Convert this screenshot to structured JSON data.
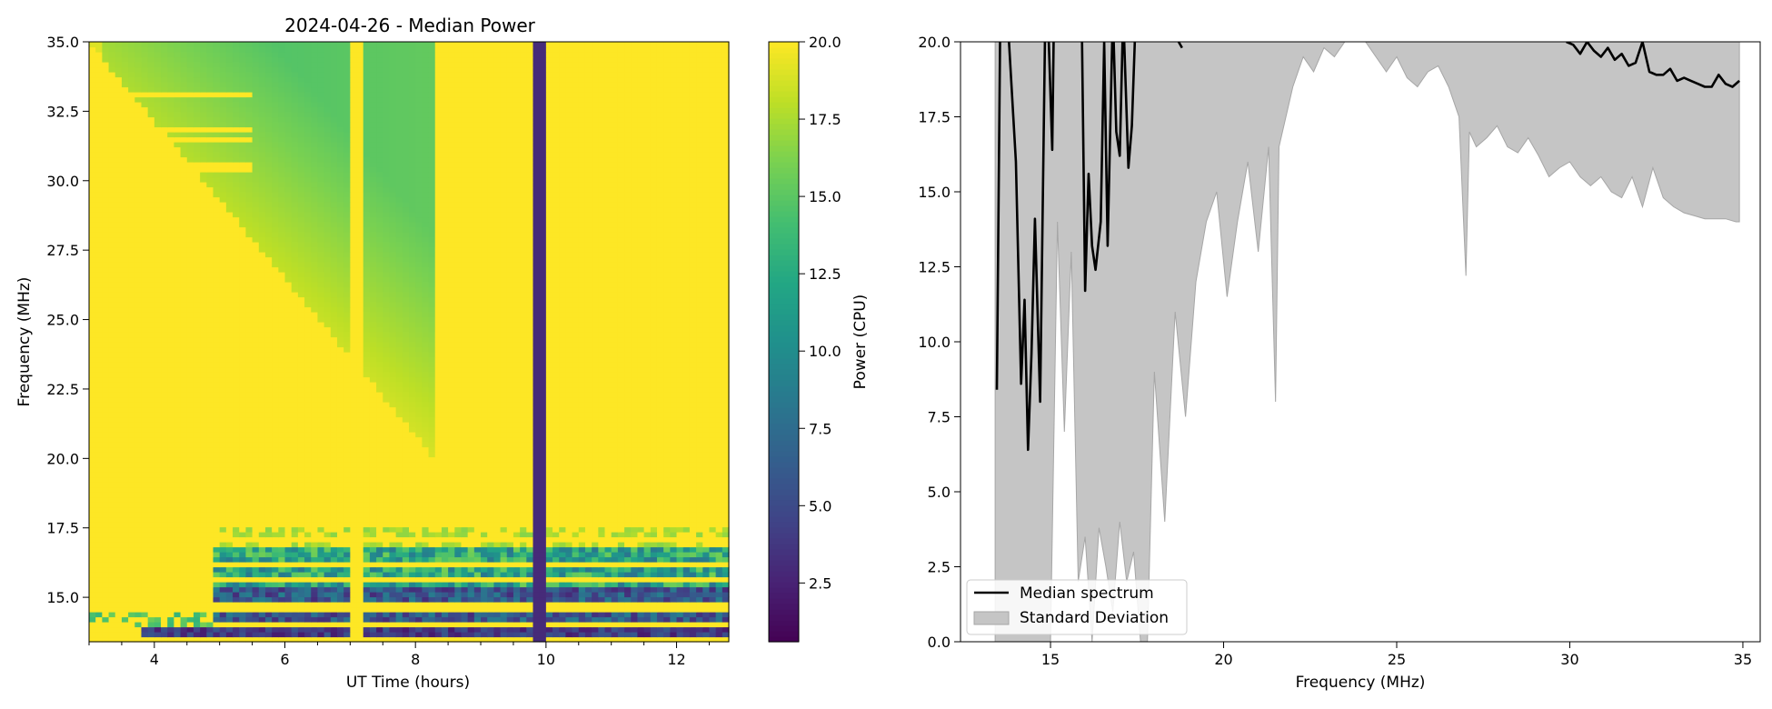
{
  "chart_data": [
    {
      "type": "heatmap",
      "title": "2024-04-26 - Median Power",
      "xlabel": "UT Time (hours)",
      "ylabel": "Frequency (MHz)",
      "xlim": [
        3.0,
        12.8
      ],
      "ylim": [
        13.4,
        35.0
      ],
      "xticks": [
        "4",
        "6",
        "8",
        "10",
        "12"
      ],
      "yticks": [
        "15.0",
        "17.5",
        "20.0",
        "22.5",
        "25.0",
        "27.5",
        "30.0",
        "32.5",
        "35.0"
      ],
      "colormap": "viridis",
      "colorbar": {
        "label": "Power (CPU)",
        "range": [
          0.6,
          20.0
        ],
        "ticks": [
          "2.5",
          "5.0",
          "7.5",
          "10.0",
          "12.5",
          "15.0",
          "17.5",
          "20.0"
        ]
      },
      "features": [
        {
          "kind": "dropout column",
          "time": 10.0,
          "value": 3.0
        },
        {
          "kind": "low-power band",
          "freq": [
            13.8,
            18.2
          ],
          "value_range": [
            2,
            14
          ]
        },
        {
          "kind": "green region",
          "freq": [
            20.0,
            35.0
          ],
          "time": [
            3.0,
            8.3
          ],
          "value_range": [
            13.5,
            18
          ]
        }
      ]
    },
    {
      "type": "line",
      "xlabel": "Frequency (MHz)",
      "ylabel": "",
      "xlim": [
        12.4,
        35.5
      ],
      "ylim": [
        0.0,
        20.0
      ],
      "xticks": [
        "15",
        "20",
        "25",
        "30",
        "35"
      ],
      "yticks": [
        "0.0",
        "2.5",
        "5.0",
        "7.5",
        "10.0",
        "12.5",
        "15.0",
        "17.5",
        "20.0"
      ],
      "legend": {
        "placement": "lower-left",
        "entries": [
          "Median spectrum",
          "Standard Deviation"
        ]
      },
      "series": [
        {
          "name": "Median spectrum",
          "x": [
            13.45,
            13.55,
            13.75,
            14.0,
            14.15,
            14.25,
            14.35,
            14.45,
            14.55,
            14.7,
            14.85,
            14.95,
            15.05,
            15.1,
            15.9,
            16.0,
            16.1,
            16.2,
            16.3,
            16.45,
            16.55,
            16.65,
            16.8,
            16.9,
            17.0,
            17.1,
            17.25,
            17.35,
            17.45,
            18.7,
            18.8,
            29.9,
            30.1,
            30.3,
            30.5,
            30.7,
            30.9,
            31.1,
            31.3,
            31.5,
            31.7,
            31.9,
            32.1,
            32.3,
            32.5,
            32.7,
            32.9,
            33.1,
            33.3,
            33.5,
            33.7,
            33.9,
            34.1,
            34.3,
            34.5,
            34.7,
            34.9
          ],
          "y": [
            8.4,
            21,
            21,
            16.0,
            8.6,
            11.4,
            6.4,
            9.6,
            14.1,
            8.0,
            21,
            20.0,
            16.4,
            21,
            21,
            11.7,
            15.6,
            13.2,
            12.4,
            14.0,
            20.0,
            13.2,
            21,
            17.0,
            16.2,
            21,
            15.8,
            17.2,
            20.5,
            20.0,
            19.8,
            20.0,
            19.9,
            19.6,
            20.0,
            19.7,
            19.5,
            19.8,
            19.4,
            19.6,
            19.2,
            19.3,
            20.0,
            19.0,
            18.9,
            18.9,
            19.1,
            18.7,
            18.8,
            18.7,
            18.6,
            18.5,
            18.5,
            18.9,
            18.6,
            18.5,
            18.7
          ]
        },
        {
          "name": "Standard Deviation",
          "kind": "band",
          "x": [
            13.4,
            13.5,
            13.7,
            13.9,
            14.1,
            14.3,
            14.5,
            14.7,
            14.9,
            15.0,
            15.2,
            15.4,
            15.6,
            15.8,
            16.0,
            16.2,
            16.4,
            16.6,
            16.8,
            17.0,
            17.2,
            17.4,
            17.6,
            17.8,
            18.0,
            18.3,
            18.6,
            18.9,
            19.2,
            19.5,
            19.8,
            20.1,
            20.4,
            20.7,
            21.0,
            21.3,
            21.5,
            21.6,
            21.8,
            22.0,
            22.3,
            22.6,
            22.9,
            23.2,
            23.5,
            23.8,
            24.1,
            24.4,
            24.7,
            25.0,
            25.3,
            25.6,
            25.9,
            26.2,
            26.5,
            26.8,
            27.0,
            27.1,
            27.3,
            27.6,
            27.9,
            28.2,
            28.5,
            28.8,
            29.1,
            29.4,
            29.7,
            30.0,
            30.3,
            30.6,
            30.9,
            31.2,
            31.5,
            31.8,
            32.1,
            32.4,
            32.7,
            33.0,
            33.3,
            33.6,
            33.9,
            34.2,
            34.5,
            34.8,
            34.9
          ],
          "lower": [
            0.0,
            0.0,
            0.0,
            0.0,
            0.0,
            0.0,
            0.0,
            0.0,
            0.0,
            0.0,
            14.0,
            7.0,
            13.0,
            2.0,
            3.5,
            0.0,
            3.8,
            2.5,
            1.0,
            4.0,
            2.0,
            3.0,
            0.0,
            0.0,
            9.0,
            4.0,
            11.0,
            7.5,
            12.0,
            14.0,
            15.0,
            11.5,
            14.0,
            16.0,
            13.0,
            16.5,
            8.0,
            16.5,
            17.5,
            18.5,
            19.5,
            19.0,
            19.8,
            19.5,
            20.0,
            20.0,
            20.0,
            19.5,
            19.0,
            19.5,
            18.8,
            18.5,
            19.0,
            19.2,
            18.5,
            17.5,
            12.2,
            17.0,
            16.5,
            16.8,
            17.2,
            16.5,
            16.3,
            16.8,
            16.2,
            15.5,
            15.8,
            16.0,
            15.5,
            15.2,
            15.5,
            15.0,
            14.8,
            15.5,
            14.5,
            15.8,
            14.8,
            14.5,
            14.3,
            14.2,
            14.1,
            14.1,
            14.1,
            14.0,
            14.0
          ],
          "upper": [
            20.0,
            20.0,
            20.0,
            20.0,
            20.0,
            20.0,
            20.0,
            20.0,
            20.0,
            20.0,
            20.0,
            20.0,
            20.0,
            20.0,
            20.0,
            20.0,
            20.0,
            20.0,
            20.0,
            20.0,
            20.0,
            20.0,
            20.0,
            20.0,
            20.0,
            20.0,
            20.0,
            20.0,
            20.0,
            20.0,
            20.0,
            20.0,
            20.0,
            20.0,
            20.0,
            20.0,
            20.0,
            20.0,
            20.0,
            20.0,
            20.0,
            20.0,
            20.0,
            20.0,
            20.0,
            20.0,
            20.0,
            20.0,
            20.0,
            20.0,
            20.0,
            20.0,
            20.0,
            20.0,
            20.0,
            20.0,
            20.0,
            20.0,
            20.0,
            20.0,
            20.0,
            20.0,
            20.0,
            20.0,
            20.0,
            20.0,
            20.0,
            20.0,
            20.0,
            20.0,
            20.0,
            20.0,
            20.0,
            20.0,
            20.0,
            20.0,
            20.0,
            20.0,
            20.0,
            20.0,
            20.0,
            20.0,
            20.0,
            20.0,
            20.0
          ]
        }
      ]
    }
  ]
}
